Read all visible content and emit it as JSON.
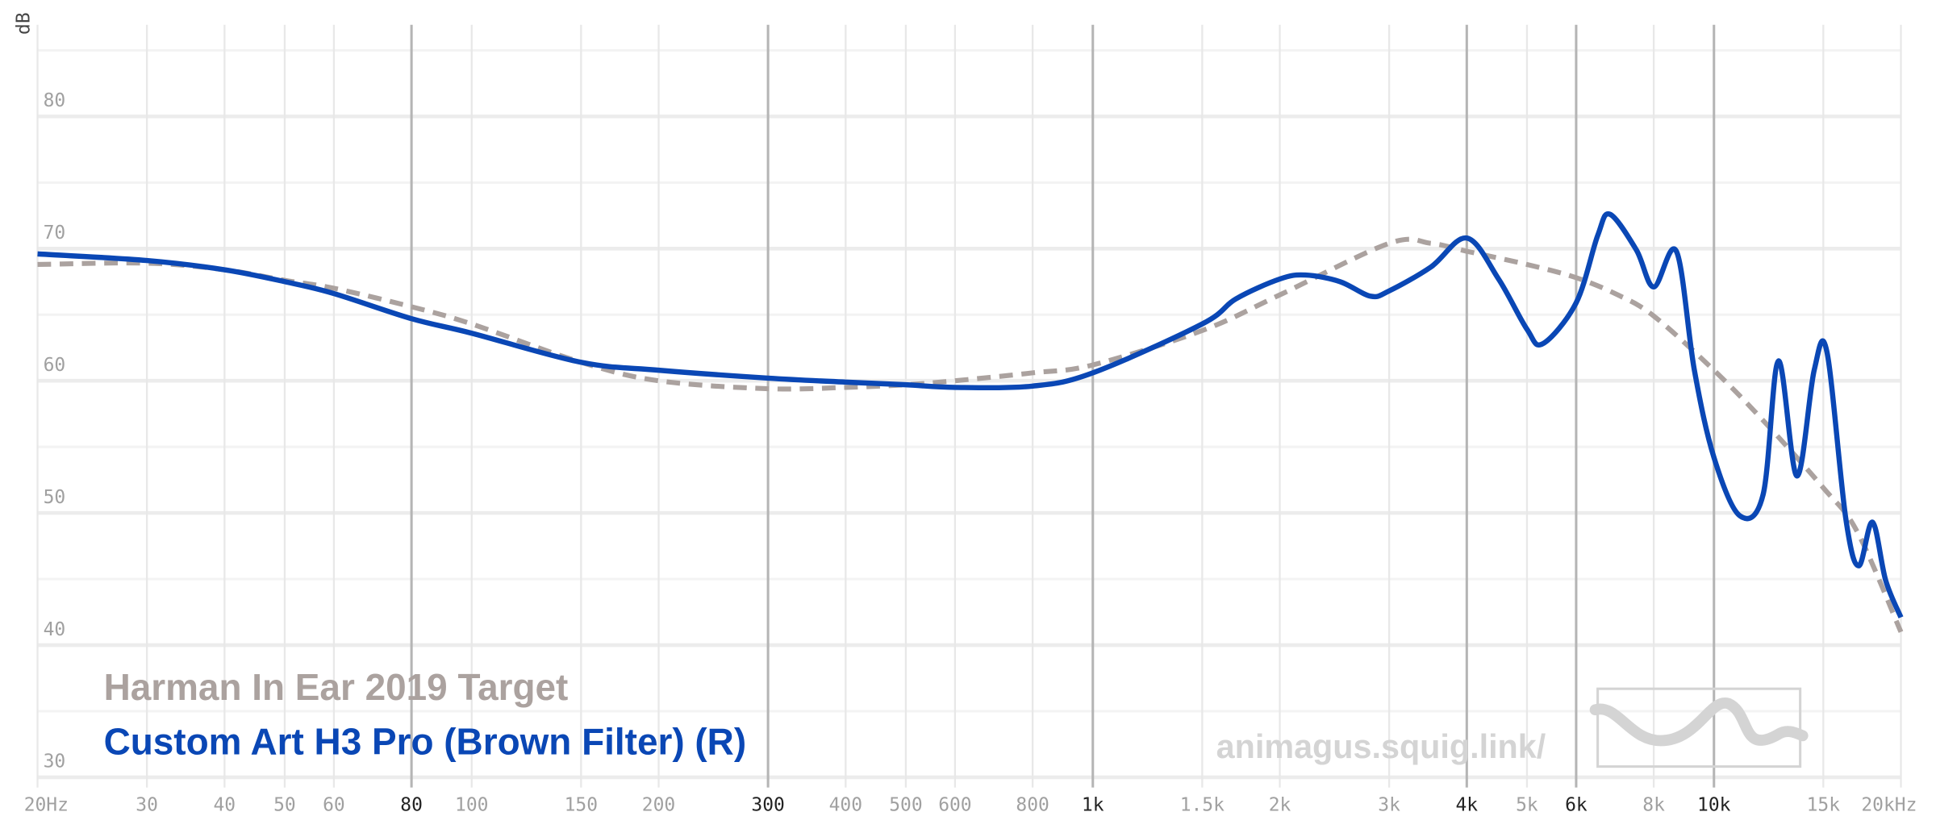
{
  "chart_data": {
    "type": "line",
    "x_scale": "log",
    "y_label": "dB",
    "watermark": "animagus.squig.link/",
    "xlim": [
      20,
      20000
    ],
    "ylim": [
      29.6,
      86
    ],
    "grid": true,
    "xticks": [
      {
        "value": 20,
        "label": "20Hz"
      },
      30,
      40,
      50,
      60,
      80,
      100,
      150,
      200,
      300,
      400,
      500,
      600,
      800,
      {
        "value": 1000,
        "label": "1k"
      },
      {
        "value": 1500,
        "label": "1.5k"
      },
      {
        "value": 2000,
        "label": "2k"
      },
      {
        "value": 3000,
        "label": "3k"
      },
      {
        "value": 4000,
        "label": "4k"
      },
      {
        "value": 5000,
        "label": "5k"
      },
      {
        "value": 6000,
        "label": "6k"
      },
      {
        "value": 8000,
        "label": "8k"
      },
      {
        "value": 10000,
        "label": "10k"
      },
      {
        "value": 15000,
        "label": "15k"
      },
      {
        "value": 20000,
        "label": "20kHz"
      }
    ],
    "emphasized_xticks": [
      80,
      300,
      1000,
      4000,
      6000,
      10000
    ],
    "yticks": [
      30,
      40,
      50,
      60,
      70,
      80
    ],
    "y_minor_ticks": [
      35,
      45,
      55,
      65,
      75,
      85
    ],
    "series": [
      {
        "name": "Harman In Ear 2019 Target",
        "color": "#aba29f",
        "dashed": true,
        "x": [
          20,
          30,
          40,
          50,
          60,
          80,
          100,
          150,
          200,
          300,
          400,
          500,
          600,
          800,
          1000,
          1500,
          2000,
          3000,
          3500,
          4000,
          5000,
          6000,
          7000,
          8000,
          10000,
          12000,
          15000,
          17000,
          20000
        ],
        "values": [
          68.8,
          68.9,
          68.4,
          67.6,
          67,
          65.6,
          64.3,
          61.4,
          60,
          59.4,
          59.5,
          59.7,
          60,
          60.6,
          61.2,
          63.8,
          66.5,
          70.4,
          70.4,
          69.8,
          68.8,
          67.8,
          66.5,
          64.9,
          60.8,
          57,
          51.9,
          48.6,
          41
        ]
      },
      {
        "name": "Custom Art H3 Pro (Brown Filter) (R)",
        "color": "#0a47b5",
        "dashed": false,
        "x": [
          20,
          30,
          40,
          50,
          60,
          80,
          100,
          150,
          200,
          300,
          400,
          500,
          600,
          800,
          1000,
          1500,
          1700,
          2000,
          2200,
          2500,
          2800,
          3000,
          3500,
          4000,
          4500,
          5000,
          5300,
          6000,
          6500,
          6800,
          7500,
          8000,
          8700,
          9300,
          10000,
          11000,
          12000,
          12700,
          13600,
          14500,
          15200,
          16300,
          17100,
          18000,
          18900,
          20000
        ],
        "values": [
          69.6,
          69.1,
          68.4,
          67.5,
          66.6,
          64.7,
          63.6,
          61.4,
          60.8,
          60.2,
          59.9,
          59.7,
          59.5,
          59.6,
          60.6,
          64.3,
          66.2,
          67.7,
          68,
          67.5,
          66.4,
          66.8,
          68.6,
          70.8,
          67.7,
          63.9,
          62.8,
          65.9,
          71,
          72.6,
          69.9,
          67.1,
          69.8,
          60.8,
          54.2,
          49.8,
          51.4,
          61.5,
          52.8,
          60.8,
          62.2,
          49.6,
          46,
          49.3,
          44.9,
          42.1
        ]
      }
    ]
  }
}
